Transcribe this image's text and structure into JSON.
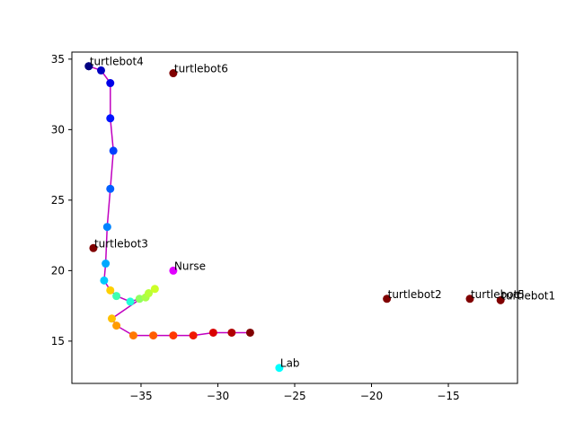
{
  "chart_data": {
    "type": "scatter",
    "title": "",
    "xlabel": "",
    "ylabel": "",
    "xlim": [
      -39.5,
      -10.5
    ],
    "ylim": [
      12.0,
      35.5
    ],
    "grid": false,
    "xticks": [
      -35,
      -30,
      -25,
      -20,
      -15
    ],
    "yticks": [
      15,
      20,
      25,
      30,
      35
    ],
    "path": {
      "color": "#c000c0",
      "x": [
        -38.4,
        -37.6,
        -37.0,
        -37.0,
        -36.8,
        -37.0,
        -37.2,
        -37.3,
        -37.4,
        -37.0,
        -36.6,
        -35.7,
        -35.1,
        -34.7,
        -34.5,
        -34.1,
        -36.9,
        -36.6,
        -35.5,
        -34.2,
        -32.9,
        -31.6,
        -30.3,
        -29.1,
        -27.9
      ],
      "y": [
        34.5,
        34.2,
        33.3,
        30.8,
        28.5,
        25.8,
        23.1,
        20.5,
        19.3,
        18.6,
        18.2,
        17.8,
        18.0,
        18.1,
        18.4,
        18.7,
        16.6,
        16.1,
        15.4,
        15.4,
        15.4,
        15.4,
        15.6,
        15.6,
        15.6
      ],
      "colors": [
        "#000080",
        "#0000c0",
        "#0000e8",
        "#0014ff",
        "#0040ff",
        "#0060ff",
        "#0084ff",
        "#00a8ff",
        "#00c8ff",
        "#ffd000",
        "#40ffb0",
        "#20ffd8",
        "#90ff60",
        "#a8ff48",
        "#b8ff38",
        "#ccff28",
        "#ffc000",
        "#ff9c00",
        "#ff7800",
        "#ff5c00",
        "#ff3800",
        "#f01800",
        "#d80000",
        "#b00000",
        "#800000"
      ]
    },
    "labeled_points": [
      {
        "label": "turtlebot4",
        "x": -38.4,
        "y": 34.5,
        "color": "#000080"
      },
      {
        "label": "turtlebot6",
        "x": -32.9,
        "y": 34.0,
        "color": "#800000"
      },
      {
        "label": "turtlebot3",
        "x": -38.1,
        "y": 21.6,
        "color": "#800000"
      },
      {
        "label": "Nurse",
        "x": -32.9,
        "y": 20.0,
        "color": "#e000ff"
      },
      {
        "label": "turtlebot2",
        "x": -19.0,
        "y": 18.0,
        "color": "#800000"
      },
      {
        "label": "turtlebot5",
        "x": -13.6,
        "y": 18.0,
        "color": "#800000"
      },
      {
        "label": "turtlebot1",
        "x": -11.6,
        "y": 17.9,
        "color": "#800000"
      },
      {
        "label": "Lab",
        "x": -26.0,
        "y": 13.1,
        "color": "#00ffff"
      }
    ]
  }
}
